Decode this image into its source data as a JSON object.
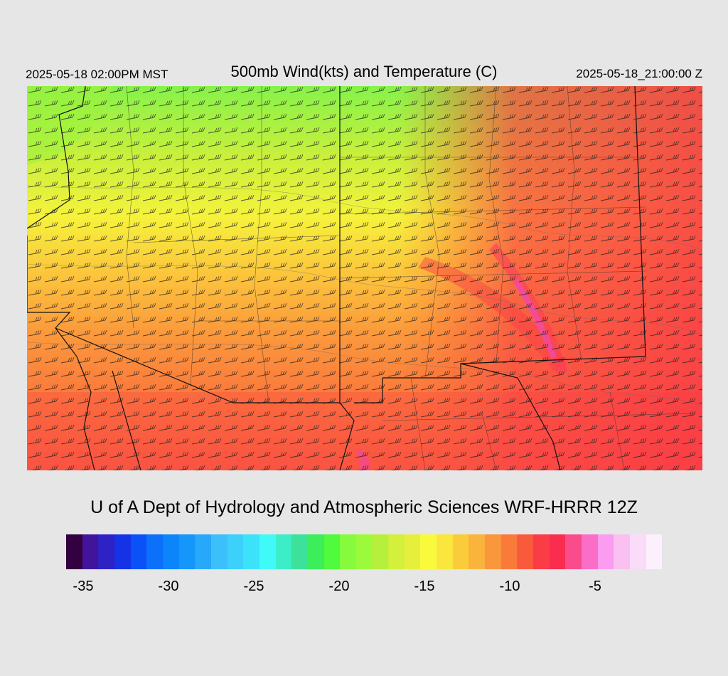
{
  "header": {
    "valid_local": "2025-05-18 02:00PM MST",
    "title": "500mb Wind(kts) and Temperature (C)",
    "valid_utc": "2025-05-18_21:00:00 Z"
  },
  "footer": {
    "credit": "U of A Dept of Hydrology and Atmospheric Sciences WRF-HRRR 12Z"
  },
  "colorbar": {
    "colors": [
      "#330040",
      "#42149c",
      "#2f22c4",
      "#1532e6",
      "#0a52f8",
      "#0c70fa",
      "#0c84fa",
      "#1496fa",
      "#28a8fa",
      "#3cc0fa",
      "#3cd0fa",
      "#3ce2fa",
      "#40fafa",
      "#3ceec8",
      "#3ce29a",
      "#3cee5a",
      "#50fa3c",
      "#86fa3c",
      "#9cfa3c",
      "#b4f03c",
      "#d2f03c",
      "#e6f03c",
      "#fafa3c",
      "#fae63c",
      "#facc3c",
      "#fab43c",
      "#fa963c",
      "#fa7a3c",
      "#fa5a3c",
      "#fa3c46",
      "#fa2c50",
      "#fa4c8c",
      "#fa6ec8",
      "#fa9cf0",
      "#fac0f0",
      "#fadcfa",
      "#fcf0fc"
    ],
    "ticks": [
      "-35",
      "-30",
      "-25",
      "-20",
      "-15",
      "-10",
      "-5"
    ]
  },
  "map": {
    "field": "500mb temperature (C) with wind barbs (kts)",
    "temperature_range_c": [
      -21,
      -6
    ],
    "wind_flow": "westerly to southwesterly, turning northwesterly in the northeast"
  }
}
